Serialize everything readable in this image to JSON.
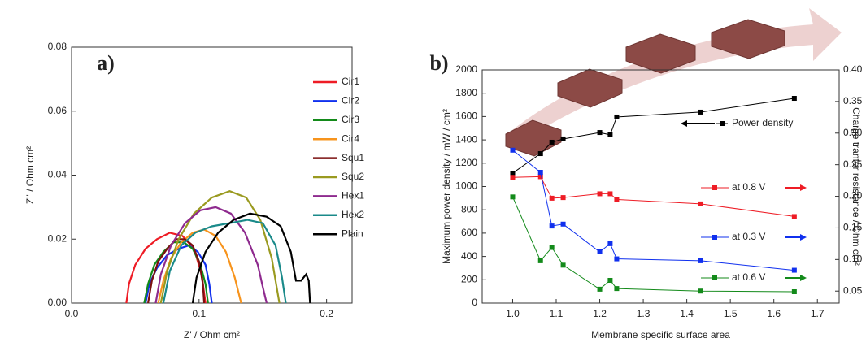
{
  "chart_data": [
    {
      "type": "line",
      "panel_label": "a)",
      "x_label": "Z' / Ohm cm²",
      "y_label": "Z'' / Ohm cm²",
      "xlim": [
        0,
        0.22
      ],
      "ylim": [
        0,
        0.08
      ],
      "xticks": [
        {
          "value": 0,
          "label": "0.0"
        },
        0.1,
        0.2
      ],
      "yticks": [
        {
          "value": 0,
          "label": "0.00"
        },
        0.02,
        0.04,
        0.06,
        0.08
      ],
      "series": [
        {
          "name": "Cir1",
          "color": "#ee1c25",
          "x": [
            0.043,
            0.045,
            0.05,
            0.058,
            0.067,
            0.077,
            0.087,
            0.096,
            0.102,
            0.105
          ],
          "values": [
            0,
            0.006,
            0.012,
            0.017,
            0.02,
            0.022,
            0.021,
            0.017,
            0.009,
            0
          ]
        },
        {
          "name": "Cir2",
          "color": "#1030ee",
          "x": [
            0.058,
            0.061,
            0.067,
            0.075,
            0.084,
            0.092,
            0.099,
            0.105,
            0.108,
            0.11
          ],
          "values": [
            0,
            0.006,
            0.011,
            0.015,
            0.017,
            0.018,
            0.016,
            0.012,
            0.006,
            0
          ]
        },
        {
          "name": "Cir3",
          "color": "#138a1a",
          "x": [
            0.057,
            0.06,
            0.065,
            0.072,
            0.08,
            0.088,
            0.095,
            0.101,
            0.105,
            0.107
          ],
          "values": [
            0,
            0.006,
            0.012,
            0.016,
            0.019,
            0.019,
            0.017,
            0.012,
            0.006,
            0
          ]
        },
        {
          "name": "Cir4",
          "color": "#f7941d",
          "x": [
            0.068,
            0.072,
            0.078,
            0.086,
            0.095,
            0.104,
            0.113,
            0.121,
            0.128,
            0.133
          ],
          "values": [
            0,
            0.007,
            0.014,
            0.019,
            0.022,
            0.023,
            0.021,
            0.016,
            0.008,
            0
          ]
        },
        {
          "name": "Squ1",
          "color": "#7b1010",
          "x": [
            0.06,
            0.063,
            0.068,
            0.075,
            0.082,
            0.089,
            0.095,
            0.1,
            0.103,
            0.104
          ],
          "values": [
            0,
            0.007,
            0.013,
            0.017,
            0.02,
            0.02,
            0.018,
            0.013,
            0.006,
            0
          ]
        },
        {
          "name": "Squ2",
          "color": "#9a9a20",
          "x": [
            0.07,
            0.075,
            0.084,
            0.096,
            0.11,
            0.124,
            0.137,
            0.148,
            0.157,
            0.163
          ],
          "values": [
            0,
            0.01,
            0.02,
            0.028,
            0.033,
            0.035,
            0.033,
            0.026,
            0.014,
            0
          ]
        },
        {
          "name": "Hex1",
          "color": "#8e2a8e",
          "x": [
            0.066,
            0.07,
            0.078,
            0.089,
            0.101,
            0.113,
            0.125,
            0.136,
            0.146,
            0.15,
            0.153
          ],
          "values": [
            0,
            0.009,
            0.018,
            0.025,
            0.029,
            0.03,
            0.028,
            0.022,
            0.012,
            0.005,
            0
          ]
        },
        {
          "name": "Hex2",
          "color": "#1a8a8a",
          "x": [
            0.072,
            0.077,
            0.086,
            0.097,
            0.11,
            0.124,
            0.138,
            0.15,
            0.16,
            0.165,
            0.168
          ],
          "values": [
            0,
            0.01,
            0.018,
            0.022,
            0.024,
            0.025,
            0.026,
            0.025,
            0.018,
            0.008,
            0
          ]
        },
        {
          "name": "Plain",
          "color": "#000000",
          "x": [
            0.095,
            0.098,
            0.105,
            0.115,
            0.127,
            0.14,
            0.153,
            0.164,
            0.172,
            0.176,
            0.18,
            0.184,
            0.186,
            0.187
          ],
          "values": [
            0,
            0.008,
            0.016,
            0.022,
            0.026,
            0.028,
            0.027,
            0.024,
            0.016,
            0.007,
            0.007,
            0.009,
            0.007,
            0
          ]
        }
      ]
    },
    {
      "type": "line",
      "markers": true,
      "panel_label": "b)",
      "x_label": "Membrane specific surface area",
      "y_label": "Maximum power density / mW / cm²",
      "y2_label": "Charge tranfer resistance / Ohm cm²",
      "xlim": [
        0.93,
        1.75
      ],
      "ylim": [
        0,
        2000
      ],
      "y2lim": [
        0.031,
        0.4
      ],
      "xticks": [
        {
          "value": 1,
          "label": "1.0"
        },
        1.1,
        1.2,
        1.3,
        1.4,
        1.5,
        1.6,
        1.7
      ],
      "yticks": [
        0,
        200,
        400,
        600,
        800,
        1000,
        1200,
        1400,
        1600,
        1800,
        2000
      ],
      "y2ticks": [
        0.05,
        {
          "value": 0.1,
          "label": "0.10"
        },
        0.15,
        {
          "value": 0.2,
          "label": "0.20"
        },
        0.25,
        {
          "value": 0.3,
          "label": "0.30"
        },
        0.35,
        {
          "value": 0.4,
          "label": "0.40"
        }
      ],
      "x": [
        1.0,
        1.064,
        1.09,
        1.116,
        1.2,
        1.224,
        1.239,
        1.432,
        1.647
      ],
      "series": [
        {
          "name": "Power density",
          "color": "#000000",
          "values": [
            1115,
            1282,
            1380,
            1408,
            1463,
            1443,
            1596,
            1638,
            1756
          ]
        },
        {
          "name": "at 0.8 V",
          "color": "#ee1c25",
          "axis": "y2",
          "values": [
            0.23,
            0.231,
            0.197,
            0.198,
            0.204,
            0.204,
            0.195,
            0.188,
            0.168
          ]
        },
        {
          "name": "at 0.3 V",
          "color": "#1030ee",
          "axis": "y2",
          "values": [
            0.273,
            0.238,
            0.153,
            0.156,
            0.112,
            0.125,
            0.101,
            0.098,
            0.083
          ]
        },
        {
          "name": "at 0.6 V",
          "color": "#138a1a",
          "axis": "y2",
          "values": [
            0.199,
            0.098,
            0.119,
            0.091,
            0.053,
            0.067,
            0.054,
            0.05,
            0.049
          ]
        }
      ]
    }
  ]
}
